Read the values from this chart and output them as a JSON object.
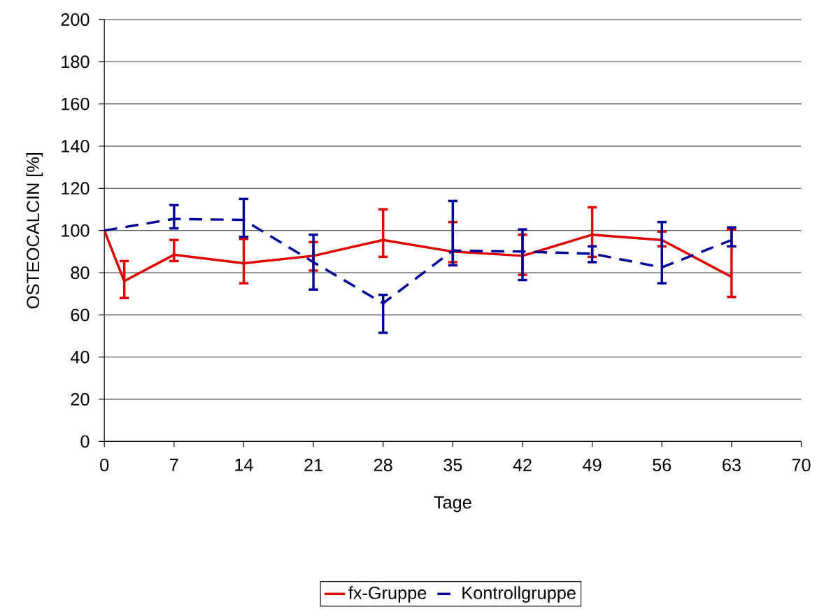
{
  "chart_data": {
    "type": "line",
    "xlabel": "Tage",
    "ylabel": "OSTEOCALCIN [%]",
    "xlim": [
      0,
      70
    ],
    "xticks": [
      0,
      7,
      14,
      21,
      28,
      35,
      42,
      49,
      56,
      63,
      70
    ],
    "ylim": [
      0,
      200
    ],
    "yticks": [
      0,
      20,
      40,
      60,
      80,
      100,
      120,
      140,
      160,
      180,
      200
    ],
    "grid": "y",
    "legend": "bottom",
    "series": [
      {
        "name": "fx-Gruppe",
        "color": "#e00000",
        "line_style": "solid",
        "x": [
          0,
          2,
          7,
          14,
          21,
          28,
          35,
          42,
          49,
          56,
          63
        ],
        "values": [
          100,
          76,
          88.5,
          84.5,
          88,
          95.5,
          90,
          88,
          98,
          95.5,
          78
        ],
        "errors": [
          null,
          [
            68,
            85.5
          ],
          [
            85.5,
            95.5
          ],
          [
            75,
            96
          ],
          [
            81,
            94.5
          ],
          [
            87.5,
            110
          ],
          [
            85,
            104
          ],
          [
            79,
            98
          ],
          [
            87.5,
            111
          ],
          [
            92.5,
            99.5
          ],
          [
            68.5,
            100.5
          ]
        ]
      },
      {
        "name": "Kontrollgruppe",
        "color": "#000099",
        "line_style": "dashed",
        "x": [
          0,
          7,
          14,
          21,
          28,
          35,
          42,
          49,
          56,
          63
        ],
        "values": [
          100,
          105.5,
          105,
          85,
          65.5,
          90.5,
          90,
          89,
          82.5,
          95.5
        ],
        "errors": [
          null,
          [
            101,
            112
          ],
          [
            97,
            115
          ],
          [
            72,
            98
          ],
          [
            51.5,
            69.5
          ],
          [
            83.5,
            114
          ],
          [
            76.5,
            100.5
          ],
          [
            85,
            92.5
          ],
          [
            75,
            104
          ],
          [
            92.5,
            101.5
          ]
        ]
      }
    ]
  }
}
